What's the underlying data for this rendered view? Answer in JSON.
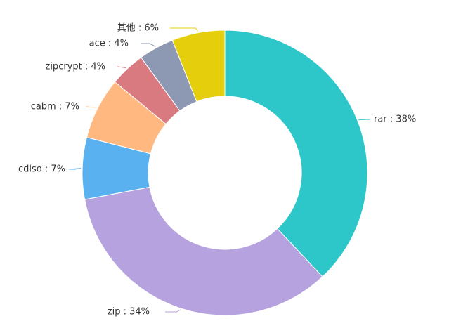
{
  "chart_data": {
    "type": "pie",
    "style": "donut",
    "title": "",
    "slices": [
      {
        "name": "rar",
        "value": 38,
        "label": "rar : 38%",
        "color": "#2ec7c9"
      },
      {
        "name": "zip",
        "value": 34,
        "label": "zip : 34%",
        "color": "#b6a2de"
      },
      {
        "name": "cdiso",
        "value": 7,
        "label": "cdiso : 7%",
        "color": "#5ab1ef"
      },
      {
        "name": "cabm",
        "value": 7,
        "label": "cabm : 7%",
        "color": "#ffb980"
      },
      {
        "name": "zipcrypt",
        "value": 4,
        "label": "zipcrypt : 4%",
        "color": "#d87a80"
      },
      {
        "name": "ace",
        "value": 4,
        "label": "ace : 4%",
        "color": "#8d98b3"
      },
      {
        "name": "其他",
        "value": 6,
        "label": "其他 : 6%",
        "color": "#e5cf0d"
      }
    ]
  }
}
